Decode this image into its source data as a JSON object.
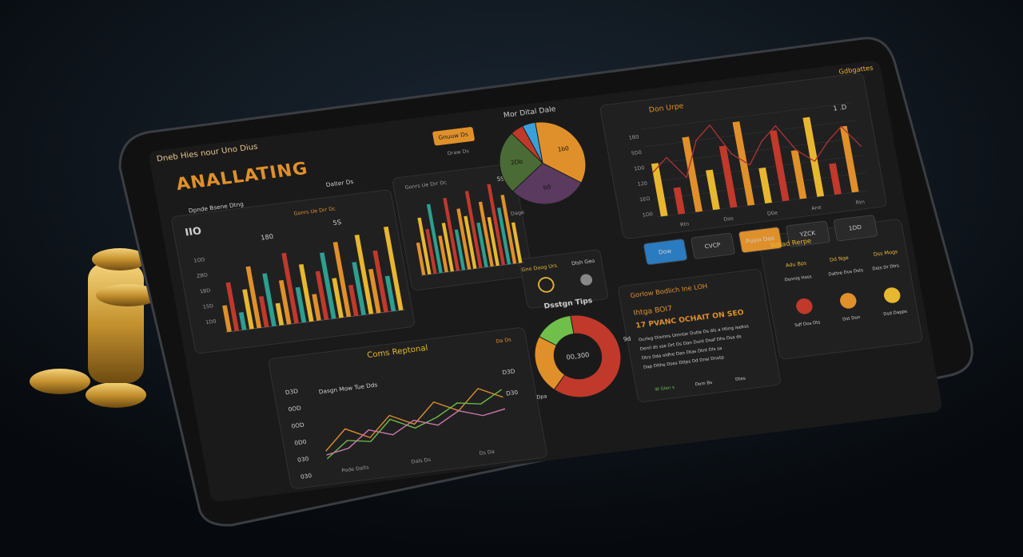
{
  "header": {
    "brand": "Dneb Hies nour Uno Dius",
    "title": "ANALLATING",
    "corner": "Gdbgattes",
    "button": "Gnuuw Ds",
    "subtitle": "Dpnde Bsene Dtng",
    "tag": "Dalter Ds",
    "small": "Draw Ds"
  },
  "bars_left": {
    "label": "IIO",
    "note_a": "180",
    "note_b": "5S",
    "legend": "Gonrs Ue Drr Dc",
    "axis_labels": [
      "1OD",
      "ZBD",
      "1BD",
      "15D",
      "1D0"
    ],
    "ylim": [
      0,
      100
    ],
    "palette": [
      "#e0902a",
      "#c0392b",
      "#2e9e8f",
      "#e8b730"
    ],
    "values": [
      30,
      55,
      20,
      45,
      70,
      35,
      60,
      25,
      50,
      80,
      40,
      65,
      30,
      55,
      75,
      45,
      85,
      35,
      60,
      90,
      50,
      70,
      40,
      95
    ]
  },
  "bars_mid": {
    "label": "Gonrs Ue Drr Dc",
    "note": "5S",
    "ylim": [
      0,
      100
    ],
    "palette": [
      "#e0902a",
      "#e8b730",
      "#c0392b",
      "#2e9e8f"
    ],
    "values": [
      40,
      70,
      55,
      85,
      45,
      60,
      90,
      50,
      75,
      65,
      95,
      55,
      80,
      60,
      100,
      70,
      85,
      50
    ]
  },
  "pie": {
    "title": "Mor Dital Dale",
    "labels": [
      "1b0",
      "b0",
      "2Db",
      "",
      ""
    ],
    "colors": [
      "#e0902a",
      "#5a3a5e",
      "#4a6b35",
      "#c0392b",
      "#3aa0d8"
    ],
    "values": [
      35,
      30,
      25,
      5,
      5
    ],
    "caption": "Dage",
    "card_a": "Gno Doog Urs",
    "card_b": "Dlsh Geo"
  },
  "right_chart": {
    "title": "Don Urpe",
    "note": "1 .D",
    "axis_labels": [
      "1B0",
      "5D0",
      "1D0",
      "120",
      "1EO",
      "1D0"
    ],
    "x_labels": [
      "Rtn",
      "Dos",
      "D0e",
      "Ane",
      "Rtn"
    ],
    "ylim": [
      0,
      100
    ],
    "bar_colors": [
      "#e8b730",
      "#c0392b",
      "#e0902a"
    ],
    "bars": [
      60,
      30,
      85,
      45,
      70,
      95,
      40,
      80,
      55,
      90,
      35,
      75
    ],
    "line_color": "#a33",
    "line": [
      50,
      65,
      40,
      80,
      95,
      60,
      45,
      70,
      85,
      55,
      40,
      60,
      75,
      50
    ]
  },
  "buttons": [
    {
      "label": "Dow"
    },
    {
      "label": "CVCP"
    },
    {
      "label": "Pusin Dos"
    },
    {
      "label": "YZCK"
    },
    {
      "label": "1DD"
    }
  ],
  "line_chart": {
    "title": "Coms Reptonal",
    "subtitle": "Dasgn Mow Tue Dds",
    "legend": "Da Ds",
    "axis_labels": [
      "D3D",
      "0OD",
      "0OD",
      "0D0",
      "030",
      "030"
    ],
    "notes": [
      "D3D",
      "D30"
    ],
    "x_labels": [
      "Pode Dalts",
      "Dals Ds",
      "Ds Da"
    ],
    "ylim": [
      0,
      100
    ],
    "series": [
      {
        "color": "#e0902a",
        "values": [
          20,
          45,
          30,
          55,
          40,
          65,
          50,
          75,
          60
        ]
      },
      {
        "color": "#6fbf4a",
        "values": [
          10,
          30,
          25,
          50,
          35,
          45,
          60,
          55,
          70
        ]
      },
      {
        "color": "#d17ab0",
        "values": [
          15,
          20,
          40,
          30,
          45,
          35,
          50,
          40,
          45
        ]
      }
    ]
  },
  "donut": {
    "title": "Dsstgn Tips",
    "center": "00,300",
    "label": "9d",
    "caption": "Dpa",
    "colors": [
      "#c0392b",
      "#e0902a",
      "#6fbf4a"
    ],
    "values": [
      62,
      23,
      15
    ]
  },
  "text_panel": {
    "title": "Gorlow Bodlich Ine LOH",
    "heading": "Ihtga BOI7",
    "subheading": "17 PVANC OCHAIT ON SEO",
    "lines": [
      "Ourleg Dismns Umntar Dutle Ds dls a Hting ieekss",
      "Denil ds sse Drt Ds Dan Dunt Dsaf Dhs Dsa ds",
      "Dtrs Dda oldhe Dan Dtas Dtnt Dls sa",
      "Dap Dlthe Dses Dttps Dd Dnsi Dnotp"
    ],
    "footer": [
      "W Glen s",
      "Dom Bs",
      "Dtes"
    ]
  },
  "report_panel": {
    "title": "Rotad Rerpe",
    "cards": [
      {
        "title": "Adu Bps",
        "text": "Dsnnig Hoss",
        "foot": "Sdf Dos Dts"
      },
      {
        "title": "Dd Nge",
        "text": "Dattre Dus Dsts",
        "foot": "Dst Don"
      },
      {
        "title": "Dss Mogs",
        "text": "Dsts Dr Dtrs",
        "foot": "Dsd Dapps"
      }
    ]
  }
}
